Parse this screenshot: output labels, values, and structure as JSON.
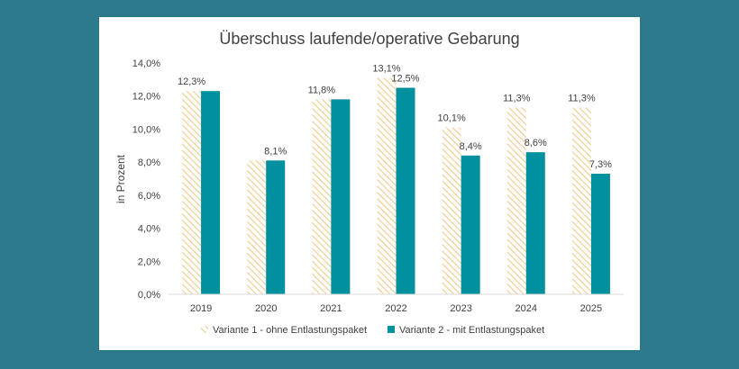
{
  "chart_data": {
    "type": "bar",
    "title": "Überschuss laufende/operative Gebarung",
    "xlabel": "",
    "ylabel": "in Prozent",
    "ylim": [
      0,
      14
    ],
    "yticks": [
      0,
      2,
      4,
      6,
      8,
      10,
      12,
      14
    ],
    "ytick_labels": [
      "0,0%",
      "2,0%",
      "4,0%",
      "6,0%",
      "8,0%",
      "10,0%",
      "12,0%",
      "14,0%"
    ],
    "categories": [
      "2019",
      "2020",
      "2021",
      "2022",
      "2023",
      "2024",
      "2025"
    ],
    "series": [
      {
        "name": "Variante 1 - ohne Entlastungspaket",
        "values": [
          12.3,
          8.1,
          11.8,
          13.1,
          10.1,
          11.3,
          11.3
        ],
        "labels": [
          "12,3%",
          "",
          "11,8%",
          "13,1%",
          "10,1%",
          "11,3%",
          "11,3%"
        ],
        "color": "#f2c98a",
        "pattern": "diagonal-hatch"
      },
      {
        "name": "Variante 2 - mit Entlastungspaket",
        "values": [
          12.3,
          8.1,
          11.8,
          12.5,
          8.4,
          8.6,
          7.3
        ],
        "labels": [
          "",
          "8,1%",
          "",
          "12,5%",
          "8,4%",
          "8,6%",
          "7,3%"
        ],
        "color": "#00909e",
        "pattern": "solid"
      }
    ],
    "grid": false,
    "legend_position": "bottom"
  }
}
